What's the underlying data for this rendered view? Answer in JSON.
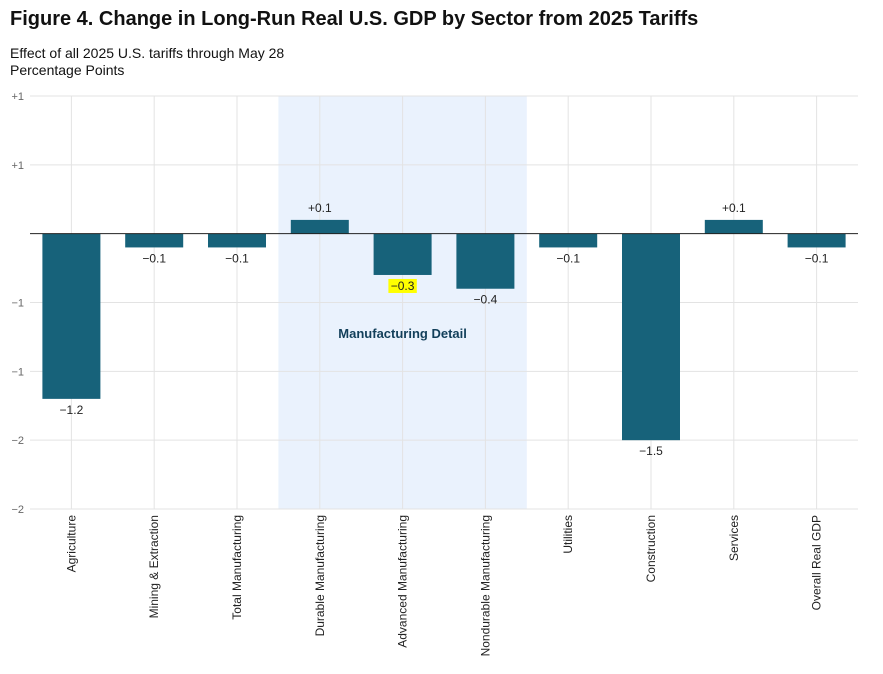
{
  "title": "Figure 4. Change in Long-Run Real U.S. GDP by Sector from 2025 Tariffs",
  "subtitle": "Effect of all 2025 U.S. tariffs through May 28",
  "unit_label": "Percentage Points",
  "colors": {
    "bar": "#17627a",
    "highlight_band": "#eaf2fd",
    "grid": "#e3e3e3",
    "zero_line": "#222222",
    "label_highlight": "#ffff00"
  },
  "chart_data": {
    "type": "bar",
    "categories": [
      "Agriculture",
      "Mining & Extraction",
      "Total Manufacturing",
      "Durable Manufacturing",
      "Advanced Manufacturing",
      "Nondurable Manufacturing",
      "Utilities",
      "Construction",
      "Services",
      "Overall Real GDP"
    ],
    "values": [
      -1.2,
      -0.1,
      -0.1,
      0.1,
      -0.3,
      -0.4,
      -0.1,
      -1.5,
      0.1,
      -0.1
    ],
    "data_labels": [
      "−1.2",
      "−0.1",
      "−0.1",
      "+0.1",
      "−0.3",
      "−0.4",
      "−0.1",
      "−1.5",
      "+0.1",
      "−0.1"
    ],
    "highlighted_label_index": 4,
    "ylim": [
      -2,
      1
    ],
    "yticks": [
      {
        "value": 1,
        "label": "+1"
      },
      {
        "value": 0.5,
        "label": "+1"
      },
      {
        "value": -0.5,
        "label": "−1"
      },
      {
        "value": -1,
        "label": "−1"
      },
      {
        "value": -1.5,
        "label": "−2"
      },
      {
        "value": -2,
        "label": "−2"
      }
    ],
    "grid": true,
    "highlight_region": {
      "start_index": 3,
      "end_index": 5,
      "label": "Manufacturing Detail"
    },
    "xlabel": "",
    "ylabel": ""
  }
}
